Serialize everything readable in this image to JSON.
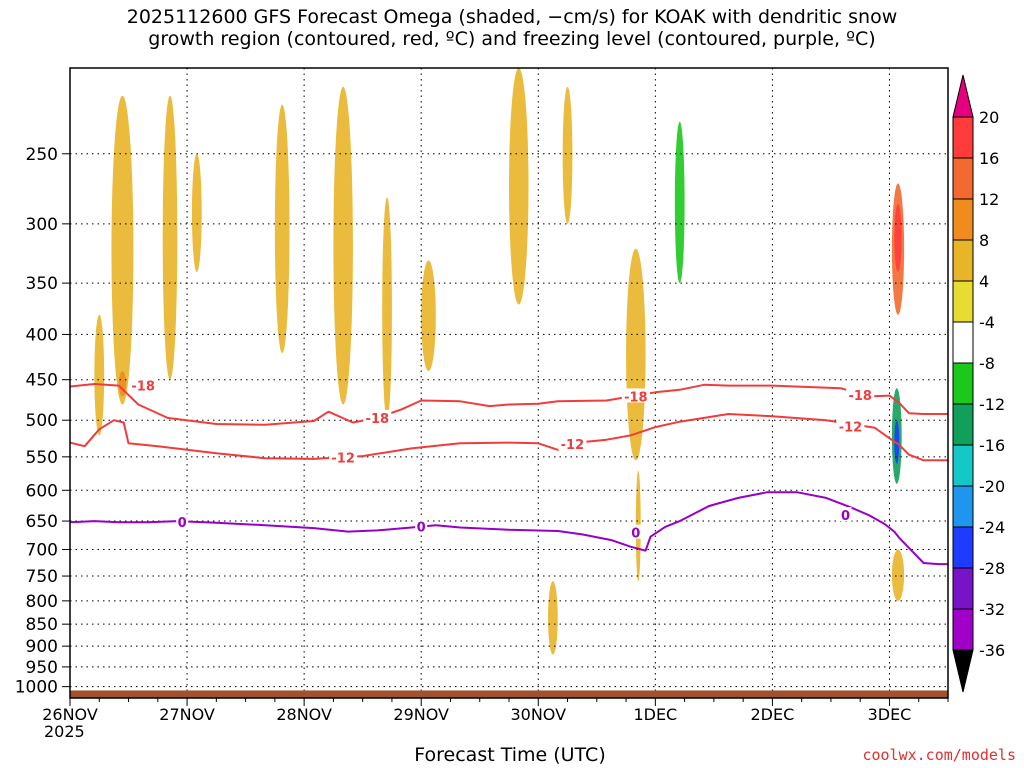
{
  "title_line1": "2025112600 GFS Forecast Omega (shaded, −cm/s) for KOAK with dendritic snow",
  "title_line2": "growth region (contoured, red, ºC) and freezing level (contoured, purple, ºC)",
  "xlabel": "Forecast Time (UTC)",
  "year_label": "2025",
  "credit": "coolwx.com/models",
  "chart_data": {
    "type": "heatmap",
    "title": "2025112600 GFS Forecast Omega (shaded, −cm/s) for KOAK with dendritic snow growth region (contoured, red, ºC) and freezing level (contoured, purple, ºC)",
    "xlabel": "Forecast Time (UTC)",
    "ylabel": "",
    "x_unit": "hours since 2025-11-26 00 UTC",
    "xlim": [
      0,
      180
    ],
    "ylim_hPa": [
      1030,
      200
    ],
    "y_scale": "log-pressure",
    "grid": true,
    "x_ticks": [
      {
        "value": 0,
        "label": "26NOV"
      },
      {
        "value": 24,
        "label": "27NOV"
      },
      {
        "value": 48,
        "label": "28NOV"
      },
      {
        "value": 72,
        "label": "29NOV"
      },
      {
        "value": 96,
        "label": "30NOV"
      },
      {
        "value": 120,
        "label": "1DEC"
      },
      {
        "value": 144,
        "label": "2DEC"
      },
      {
        "value": 168,
        "label": "3DEC"
      }
    ],
    "y_ticks": [
      250,
      300,
      350,
      400,
      450,
      500,
      550,
      600,
      650,
      700,
      750,
      800,
      850,
      900,
      950,
      1000
    ],
    "colorbar": {
      "labels": [
        20,
        16,
        12,
        8,
        4,
        -4,
        -8,
        -12,
        -16,
        -20,
        -24,
        -28,
        -32,
        -36
      ],
      "colors": [
        "#ff3c3c",
        "#f26a30",
        "#f08c1e",
        "#e8b428",
        "#e6dc32",
        "#ffffff",
        "#1cc81c",
        "#10a05a",
        "#14c8c8",
        "#1e96f0",
        "#1e3cff",
        "#7814c8",
        "#a000c8",
        "#a0a0a0"
      ],
      "top_arrow_color": "#e6007e",
      "bottom_arrow_color": "#000000"
    },
    "contours": [
      {
        "label": "-18",
        "color": "#f03c3c",
        "points": [
          [
            0,
            458
          ],
          [
            5,
            455
          ],
          [
            10,
            457
          ],
          [
            14,
            480
          ],
          [
            20,
            497
          ],
          [
            30,
            505
          ],
          [
            40,
            506
          ],
          [
            50,
            501
          ],
          [
            53,
            489
          ],
          [
            58,
            503
          ],
          [
            63,
            497
          ],
          [
            68,
            486
          ],
          [
            72,
            475
          ],
          [
            80,
            476
          ],
          [
            86,
            482
          ],
          [
            90,
            480
          ],
          [
            96,
            479
          ],
          [
            100,
            476
          ],
          [
            110,
            475
          ],
          [
            115,
            470
          ],
          [
            120,
            465
          ],
          [
            125,
            462
          ],
          [
            130,
            456
          ],
          [
            135,
            457
          ],
          [
            144,
            457
          ],
          [
            158,
            460
          ],
          [
            164,
            470
          ],
          [
            168,
            469
          ],
          [
            170,
            478
          ],
          [
            172,
            491
          ],
          [
            175,
            492
          ],
          [
            180,
            492
          ]
        ],
        "label_points": [
          [
            15,
            457
          ],
          [
            63,
            497
          ],
          [
            116,
            470
          ],
          [
            162,
            468
          ]
        ]
      },
      {
        "label": "-12",
        "color": "#f03c3c",
        "points": [
          [
            0,
            530
          ],
          [
            3,
            535
          ],
          [
            6,
            512
          ],
          [
            9,
            500
          ],
          [
            11,
            503
          ],
          [
            12,
            531
          ],
          [
            18,
            535
          ],
          [
            30,
            545
          ],
          [
            40,
            552
          ],
          [
            50,
            553
          ],
          [
            60,
            549
          ],
          [
            70,
            538
          ],
          [
            80,
            531
          ],
          [
            90,
            530
          ],
          [
            96,
            531
          ],
          [
            100,
            540
          ],
          [
            104,
            530
          ],
          [
            110,
            526
          ],
          [
            115,
            520
          ],
          [
            120,
            509
          ],
          [
            125,
            502
          ],
          [
            135,
            492
          ],
          [
            144,
            495
          ],
          [
            155,
            500
          ],
          [
            160,
            505
          ],
          [
            165,
            510
          ],
          [
            168,
            524
          ],
          [
            170,
            533
          ],
          [
            172,
            547
          ],
          [
            175,
            555
          ],
          [
            180,
            555
          ]
        ],
        "label_points": [
          [
            56,
            551
          ],
          [
            103,
            532
          ],
          [
            160,
            508
          ]
        ]
      },
      {
        "label": "0",
        "color": "#9600c8",
        "points": [
          [
            0,
            652
          ],
          [
            5,
            650
          ],
          [
            10,
            652
          ],
          [
            16,
            652
          ],
          [
            22,
            650
          ],
          [
            30,
            653
          ],
          [
            40,
            657
          ],
          [
            50,
            662
          ],
          [
            57,
            668
          ],
          [
            63,
            666
          ],
          [
            70,
            661
          ],
          [
            75,
            657
          ],
          [
            80,
            661
          ],
          [
            90,
            665
          ],
          [
            100,
            667
          ],
          [
            105,
            673
          ],
          [
            111,
            683
          ],
          [
            115,
            695
          ],
          [
            118,
            702
          ],
          [
            119,
            677
          ],
          [
            122,
            660
          ],
          [
            125,
            650
          ],
          [
            131,
            625
          ],
          [
            137,
            612
          ],
          [
            143,
            603
          ],
          [
            149,
            603
          ],
          [
            155,
            612
          ],
          [
            160,
            627
          ],
          [
            164,
            641
          ],
          [
            167,
            655
          ],
          [
            169,
            668
          ],
          [
            170,
            679
          ],
          [
            172,
            697
          ],
          [
            175,
            725
          ],
          [
            178,
            727
          ],
          [
            180,
            727
          ]
        ],
        "label_points": [
          [
            23,
            652
          ],
          [
            72,
            659
          ],
          [
            116,
            670
          ],
          [
            159,
            640
          ]
        ]
      }
    ],
    "omega_features": [
      {
        "x": [
          8.5,
          13
        ],
        "p": [
          480,
          215
        ],
        "value": 6
      },
      {
        "x": [
          5,
          7
        ],
        "p": [
          520,
          380
        ],
        "value": 6
      },
      {
        "x": [
          10,
          11.5
        ],
        "p": [
          470,
          440
        ],
        "value": 10
      },
      {
        "x": [
          19,
          22
        ],
        "p": [
          450,
          215
        ],
        "value": 5
      },
      {
        "x": [
          25,
          27
        ],
        "p": [
          340,
          250
        ],
        "value": 5
      },
      {
        "x": [
          42,
          45
        ],
        "p": [
          420,
          220
        ],
        "value": 5
      },
      {
        "x": [
          54,
          58
        ],
        "p": [
          480,
          210
        ],
        "value": 5
      },
      {
        "x": [
          64,
          66
        ],
        "p": [
          500,
          280
        ],
        "value": 5
      },
      {
        "x": [
          72,
          75
        ],
        "p": [
          440,
          330
        ],
        "value": 5
      },
      {
        "x": [
          90,
          94
        ],
        "p": [
          370,
          200
        ],
        "value": 5
      },
      {
        "x": [
          101,
          103
        ],
        "p": [
          300,
          210
        ],
        "value": 5
      },
      {
        "x": [
          114,
          118
        ],
        "p": [
          555,
          320
        ],
        "value": 5
      },
      {
        "x": [
          116,
          117
        ],
        "p": [
          760,
          570
        ],
        "value": 5
      },
      {
        "x": [
          98,
          100
        ],
        "p": [
          920,
          760
        ],
        "value": 5
      },
      {
        "x": [
          121.5,
          124
        ],
        "p": [
          470,
          200
        ],
        "value": -6
      },
      {
        "x": [
          124,
          126
        ],
        "p": [
          350,
          230
        ],
        "value": -10
      },
      {
        "x": [
          126,
          127.5
        ],
        "p": [
          545,
          400
        ],
        "value": -6
      },
      {
        "x": [
          2,
          4
        ],
        "p": [
          380,
          300
        ],
        "value": -6
      },
      {
        "x": [
          167,
          172
        ],
        "p": [
          600,
          240
        ],
        "value": -6
      },
      {
        "x": [
          174,
          178
        ],
        "p": [
          430,
          250
        ],
        "value": -6
      },
      {
        "x": [
          168.5,
          171
        ],
        "p": [
          380,
          270
        ],
        "value": 14
      },
      {
        "x": [
          169,
          170.5
        ],
        "p": [
          340,
          285
        ],
        "value": 18
      },
      {
        "x": [
          168.5,
          170.5
        ],
        "p": [
          590,
          460
        ],
        "value": -16
      },
      {
        "x": [
          169,
          170
        ],
        "p": [
          560,
          500
        ],
        "value": -26
      },
      {
        "x": [
          168.5,
          171
        ],
        "p": [
          800,
          700
        ],
        "value": 6
      }
    ],
    "ground": {
      "p": [
        1010,
        1030
      ],
      "color": "#a0522d"
    }
  }
}
